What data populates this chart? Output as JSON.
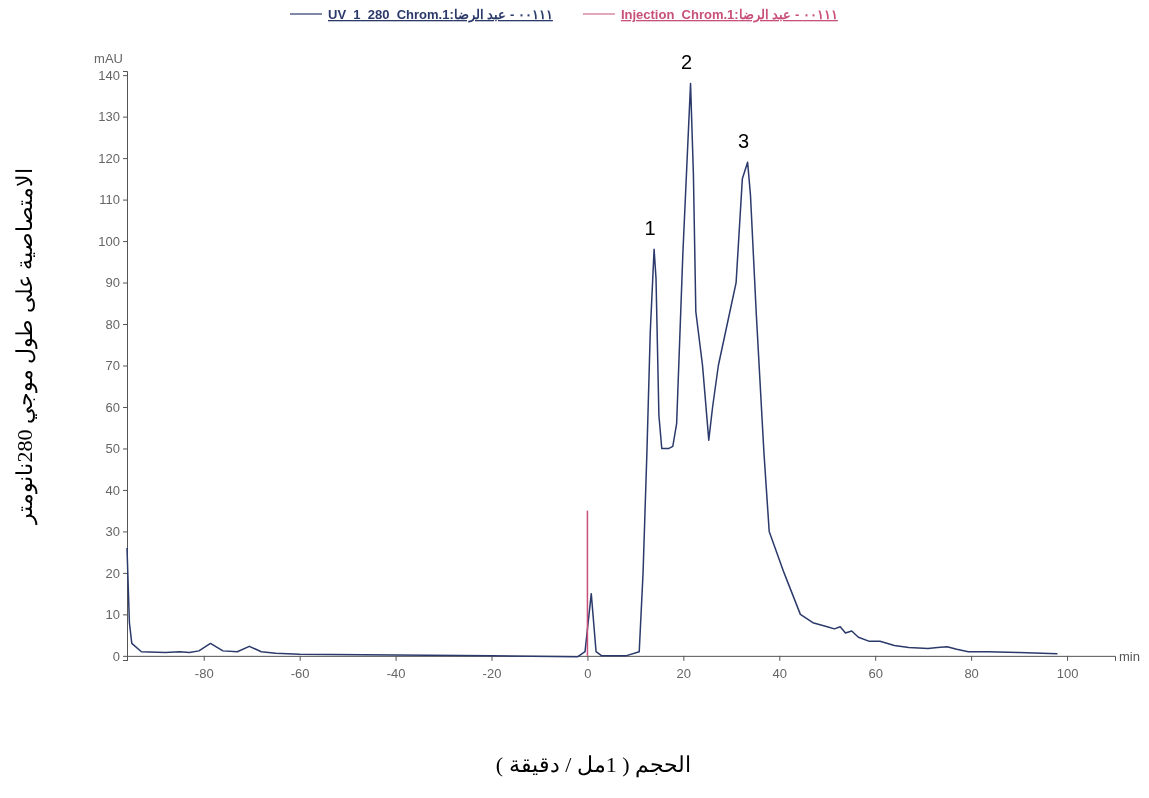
{
  "chart_data": {
    "type": "line",
    "xlabel": "الحجم ( 1مل / دقيقة )",
    "ylabel": "الامتصاصية على طول موجي 280نانومتر",
    "xlim": [
      -96,
      110
    ],
    "xticks": [
      -80,
      -60,
      -40,
      -20,
      0,
      20,
      40,
      60,
      80,
      100
    ],
    "ylim": [
      -1,
      141
    ],
    "yticks": [
      0,
      10,
      20,
      30,
      40,
      50,
      60,
      70,
      80,
      90,
      100,
      110,
      120,
      130,
      140
    ],
    "legend": "top",
    "annotations": [
      "mAU",
      "min",
      {
        "text": "1",
        "x": 13.9,
        "y": 98
      },
      {
        "text": "2",
        "x": 21.5,
        "y": 138
      },
      {
        "text": "3",
        "x": 33.4,
        "y": 119
      }
    ],
    "series": [
      {
        "name": "UV_1_280_Chrom.1:٠٠١١١ - عبد الرضا",
        "color": "#2b3a6b",
        "x": [
          -96,
          -95.5,
          -95,
          -93,
          -88,
          -85,
          -83,
          -81,
          -78.6,
          -76,
          -73,
          -70.5,
          -68,
          -65,
          -60,
          -40,
          -20,
          -2,
          -0.5,
          0.8,
          1.8,
          3,
          8,
          10.8,
          11.6,
          12.4,
          13.1,
          13.9,
          14.3,
          14.9,
          15.5,
          17,
          17.8,
          18.6,
          19.9,
          21.5,
          22.1,
          22.6,
          24,
          25.3,
          26.1,
          27.3,
          29.8,
          31,
          32.3,
          33.4,
          34,
          35.2,
          36.8,
          37.9,
          41,
          44.4,
          47,
          50,
          51.5,
          52.7,
          53.8,
          55.1,
          56.5,
          58.8,
          61,
          64,
          67,
          71,
          73,
          75,
          77,
          79.4,
          83.5,
          90,
          98
        ],
        "values": [
          26,
          8,
          3,
          1,
          0.8,
          1,
          0.8,
          1.2,
          3,
          1.2,
          1,
          2.3,
          1,
          0.6,
          0.4,
          0.2,
          0,
          -0.2,
          1,
          15,
          1,
          0,
          0,
          1,
          20,
          49,
          78,
          98,
          91,
          58,
          50,
          50,
          50.5,
          56,
          97,
          138,
          116,
          83,
          70,
          52,
          60,
          70,
          83.5,
          90,
          115,
          119,
          111,
          82.6,
          49,
          30,
          20,
          10,
          8,
          7,
          6.5,
          7,
          5.5,
          6,
          4.5,
          3.5,
          3.5,
          2.5,
          2,
          1.8,
          2,
          2.2,
          1.6,
          1,
          1,
          0.8,
          0.5
        ]
      },
      {
        "name": "Injection_Chrom.1:٠٠١١١ - عبد الرضا",
        "color": "#c8507a",
        "x": [
          0,
          0
        ],
        "values": [
          0,
          35
        ]
      }
    ]
  }
}
